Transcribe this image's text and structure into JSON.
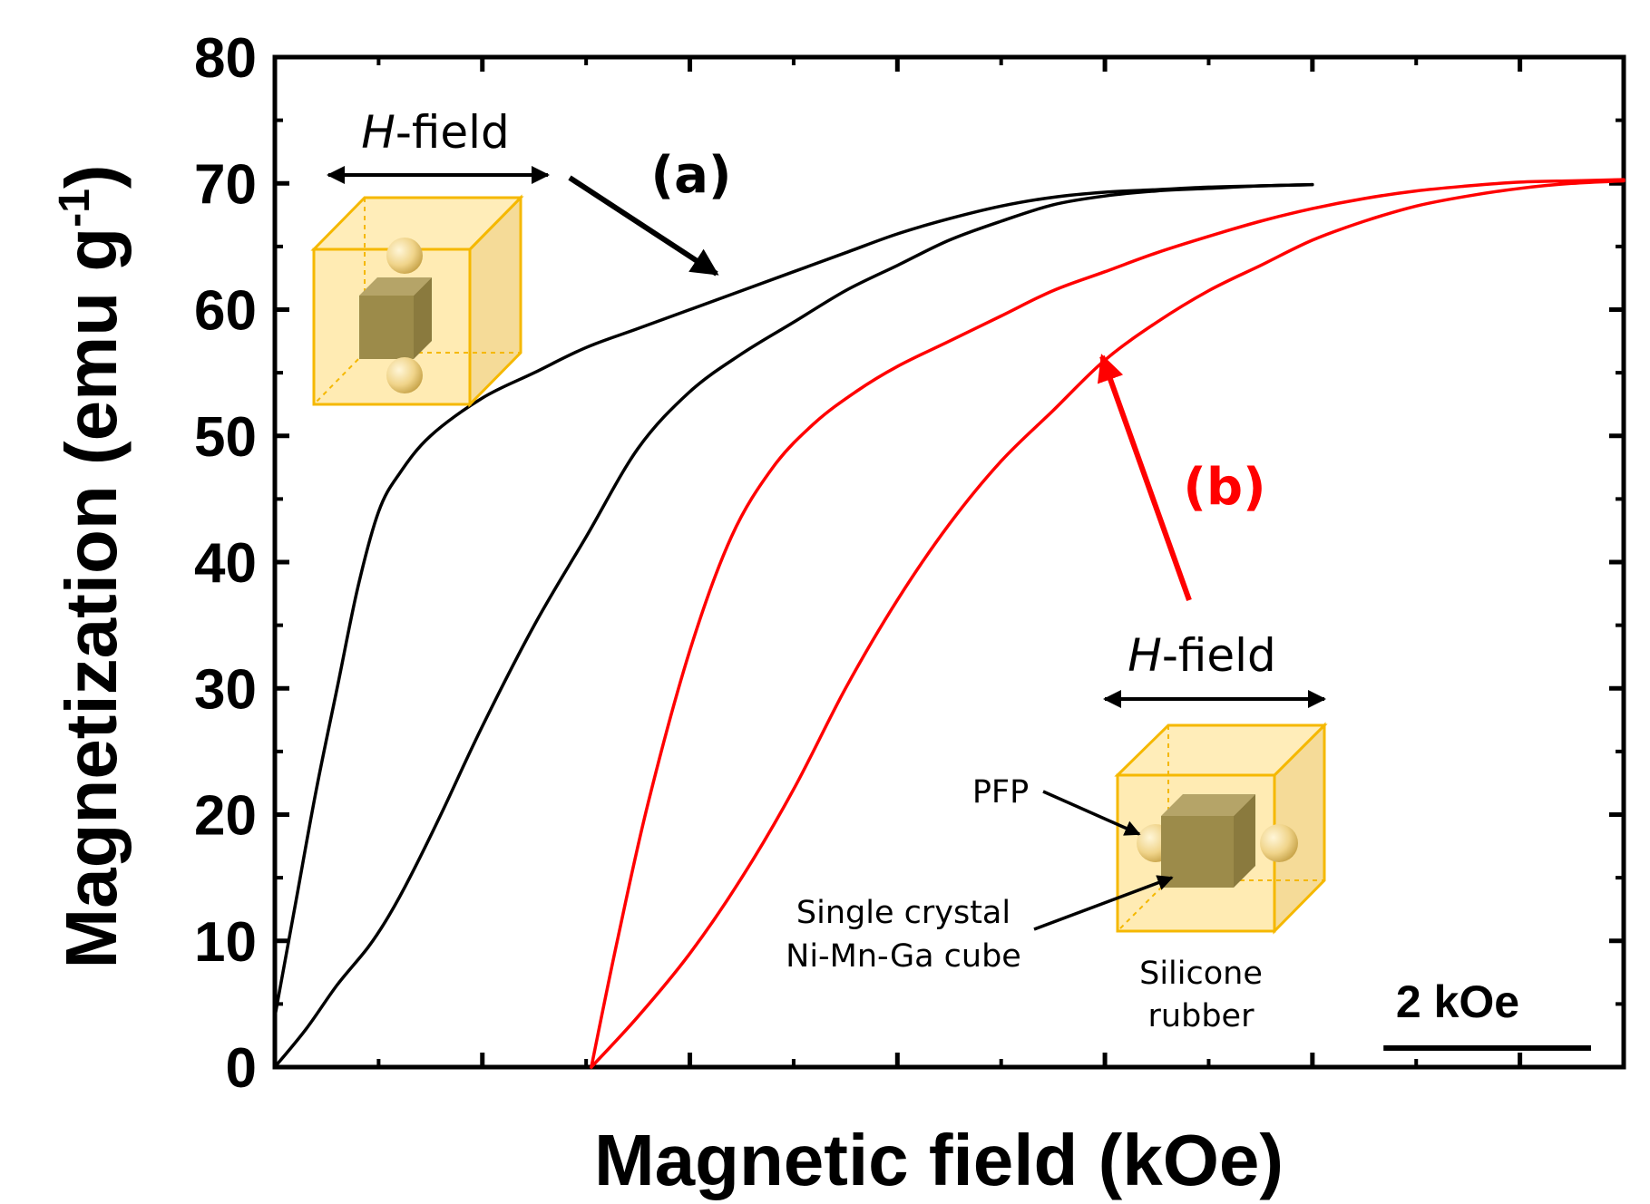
{
  "chart_data": {
    "type": "line",
    "xlabel": "Magnetic field (kOe)",
    "ylabel_main": "Magnetization (emu g",
    "ylabel_sup": "-1",
    "ylabel_close": ")",
    "ylim": [
      0,
      80
    ],
    "xlim": [
      0,
      13
    ],
    "y_ticks": [
      "0",
      "10",
      "20",
      "30",
      "40",
      "50",
      "60",
      "70",
      "80"
    ],
    "x_tick_labels_shown": false,
    "grid": false,
    "scale_bar_label": "2 kOe",
    "scale_bar_kOe": 2,
    "series": [
      {
        "name": "(a)",
        "color": "#000000",
        "branches": [
          {
            "x": [
              0,
              0.3,
              0.6,
              0.9,
              1.1,
              1.3,
              1.6,
              2.0,
              2.5,
              3.0,
              3.5,
              4.0,
              4.5,
              5.0,
              5.5,
              6.0,
              6.5,
              7.0,
              7.5,
              8.0,
              8.5,
              9.0,
              9.5,
              10.0
            ],
            "y": [
              0,
              3,
              6.5,
              9.5,
              12,
              15,
              20,
              27,
              35,
              42,
              49,
              53.5,
              56.5,
              59,
              61.5,
              63.5,
              65.5,
              67,
              68.3,
              69,
              69.4,
              69.6,
              69.8,
              69.9
            ]
          },
          {
            "x": [
              0,
              0.2,
              0.4,
              0.6,
              0.8,
              1.0,
              1.2,
              1.5,
              2.0,
              2.5,
              3.0,
              3.5,
              4.0,
              4.5,
              5.0,
              5.5,
              6.0,
              6.5,
              7.0,
              7.5,
              8.0,
              8.5,
              9.0,
              9.5,
              10.0
            ],
            "y": [
              4,
              13,
              22,
              30,
              38,
              44,
              47,
              50,
              53,
              55,
              57,
              58.5,
              60,
              61.5,
              63,
              64.5,
              66,
              67.2,
              68.2,
              68.9,
              69.3,
              69.5,
              69.7,
              69.8,
              69.9
            ]
          }
        ]
      },
      {
        "name": "(b)",
        "color": "#ff0000",
        "branches": [
          {
            "x": [
              3.05,
              3.5,
              4.0,
              4.5,
              5.0,
              5.5,
              6.0,
              6.5,
              7.0,
              7.5,
              8.0,
              8.5,
              9.0,
              9.5,
              10.0,
              10.5,
              11.0,
              11.5,
              12.0,
              12.5,
              13.0
            ],
            "y": [
              0,
              4,
              9,
              15,
              22,
              30,
              37,
              43,
              48,
              52,
              56,
              59,
              61.5,
              63.5,
              65.5,
              67,
              68.2,
              69,
              69.6,
              70,
              70.2
            ]
          },
          {
            "x": [
              3.05,
              3.3,
              3.6,
              4.0,
              4.4,
              4.8,
              5.2,
              5.6,
              6.0,
              6.5,
              7.0,
              7.5,
              8.0,
              8.5,
              9.0,
              9.5,
              10.0,
              10.5,
              11.0,
              11.5,
              12.0,
              12.5,
              13.0
            ],
            "y": [
              0,
              10,
              21,
              33,
              42,
              47.5,
              51,
              53.5,
              55.5,
              57.5,
              59.5,
              61.5,
              63,
              64.5,
              65.8,
              67,
              68,
              68.8,
              69.4,
              69.8,
              70.1,
              70.2,
              70.3
            ]
          }
        ]
      }
    ]
  },
  "annotations": {
    "hfield_italic": "H",
    "hfield_rest": "-field",
    "pfp": "PFP",
    "crystal_line1": "Single crystal",
    "crystal_line2": "Ni-Mn-Ga cube",
    "silicone_line1": "Silicone",
    "silicone_line2": "rubber"
  },
  "colors": {
    "series_a": "#000000",
    "series_b": "#ff0000",
    "cube_fill": "#ffe08a",
    "cube_edge": "#f5b800",
    "crystal": "#9c8b4a",
    "sphere": "#f0d48a"
  }
}
